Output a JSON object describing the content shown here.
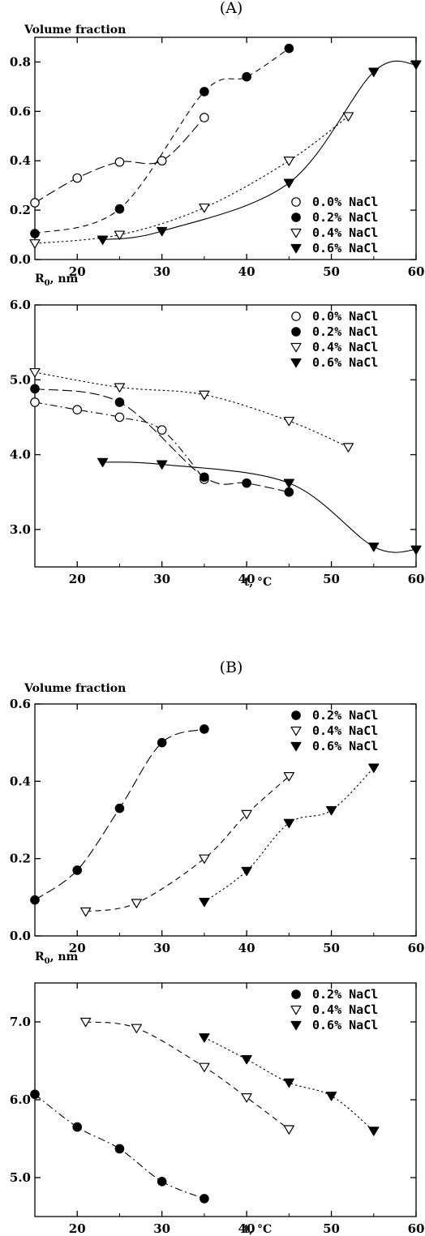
{
  "figure": {
    "panel_a_label": "(A)",
    "panel_b_label": "(B)"
  },
  "chart_data": [
    {
      "type": "scatter",
      "title": "",
      "ylabel": "Volume fraction",
      "xlabel": "",
      "xlim": [
        15,
        60
      ],
      "ylim": [
        0,
        0.9
      ],
      "xticks": [
        "20",
        "30",
        "40",
        "50",
        "60"
      ],
      "yticks": [
        "0.0",
        "0.2",
        "0.4",
        "0.6",
        "0.8"
      ],
      "legend_position": "lower-right",
      "series": [
        {
          "name": "0.0% NaCl",
          "marker": "open-circle",
          "line": "long-dash",
          "x": [
            15,
            20,
            25,
            30,
            35
          ],
          "y": [
            0.23,
            0.33,
            0.395,
            0.4,
            0.575
          ]
        },
        {
          "name": "0.2% NaCl",
          "marker": "filled-circle",
          "line": "dash",
          "x": [
            15,
            25,
            35,
            40,
            45
          ],
          "y": [
            0.105,
            0.205,
            0.68,
            0.74,
            0.855
          ]
        },
        {
          "name": "0.4% NaCl",
          "marker": "open-triangle-down",
          "line": "dot",
          "x": [
            15,
            25,
            35,
            45,
            52
          ],
          "y": [
            0.065,
            0.1,
            0.21,
            0.4,
            0.58
          ]
        },
        {
          "name": "0.6% NaCl",
          "marker": "filled-triangle-down",
          "line": "solid",
          "x": [
            23,
            30,
            45,
            55,
            60
          ],
          "y": [
            0.08,
            0.115,
            0.31,
            0.76,
            0.79
          ]
        }
      ]
    },
    {
      "type": "scatter",
      "title": "",
      "ylabel": "R",
      "ylabel_sub": "0",
      "ylabel_unit": ", nm",
      "xlabel": "t, °C",
      "xlim": [
        15,
        60
      ],
      "ylim": [
        2.5,
        6.0
      ],
      "xticks": [
        "20",
        "30",
        "40",
        "50",
        "60"
      ],
      "yticks": [
        "3.0",
        "4.0",
        "5.0",
        "6.0"
      ],
      "legend_position": "top-right",
      "series": [
        {
          "name": "0.0% NaCl",
          "marker": "open-circle",
          "line": "dash-dot",
          "x": [
            15,
            20,
            25,
            30,
            35
          ],
          "y": [
            4.7,
            4.6,
            4.5,
            4.33,
            3.67
          ]
        },
        {
          "name": "0.2% NaCl",
          "marker": "filled-circle",
          "line": "long-dash",
          "x": [
            15,
            25,
            35,
            40,
            45
          ],
          "y": [
            4.88,
            4.7,
            3.7,
            3.62,
            3.5
          ]
        },
        {
          "name": "0.4% NaCl",
          "marker": "open-triangle-down",
          "line": "dot",
          "x": [
            15,
            25,
            35,
            45,
            52
          ],
          "y": [
            5.1,
            4.9,
            4.8,
            4.45,
            4.1
          ]
        },
        {
          "name": "0.6% NaCl",
          "marker": "filled-triangle-down",
          "line": "solid",
          "x": [
            23,
            30,
            45,
            55,
            60
          ],
          "y": [
            3.9,
            3.87,
            3.62,
            2.77,
            2.73
          ]
        }
      ]
    },
    {
      "type": "scatter",
      "title": "",
      "ylabel": "Volume fraction",
      "xlabel": "",
      "xlim": [
        15,
        60
      ],
      "ylim": [
        0,
        0.6
      ],
      "xticks": [
        "20",
        "30",
        "40",
        "50",
        "60"
      ],
      "yticks": [
        "0.0",
        "0.2",
        "0.4",
        "0.6"
      ],
      "legend_position": "top-right",
      "series": [
        {
          "name": "0.2% NaCl",
          "marker": "filled-circle",
          "line": "long-dash",
          "x": [
            15,
            20,
            25,
            30,
            35
          ],
          "y": [
            0.093,
            0.17,
            0.33,
            0.5,
            0.535
          ]
        },
        {
          "name": "0.4% NaCl",
          "marker": "open-triangle-down",
          "line": "dash",
          "x": [
            21,
            27,
            35,
            40,
            45
          ],
          "y": [
            0.063,
            0.085,
            0.2,
            0.315,
            0.413
          ]
        },
        {
          "name": "0.6% NaCl",
          "marker": "filled-triangle-down",
          "line": "dot",
          "x": [
            35,
            40,
            45,
            50,
            55
          ],
          "y": [
            0.088,
            0.168,
            0.292,
            0.325,
            0.435
          ]
        }
      ]
    },
    {
      "type": "scatter",
      "title": "",
      "ylabel": "R",
      "ylabel_sub": "0",
      "ylabel_unit": ", nm",
      "xlabel": "t, °C",
      "xlim": [
        15,
        60
      ],
      "ylim": [
        4.5,
        7.5
      ],
      "xticks": [
        "20",
        "30",
        "40",
        "50",
        "60"
      ],
      "yticks": [
        "5.0",
        "6.0",
        "7.0"
      ],
      "legend_position": "top-right",
      "series": [
        {
          "name": "0.2% NaCl",
          "marker": "filled-circle",
          "line": "dash-dot",
          "x": [
            15,
            20,
            25,
            30,
            35
          ],
          "y": [
            6.07,
            5.65,
            5.37,
            4.95,
            4.73
          ]
        },
        {
          "name": "0.4% NaCl",
          "marker": "open-triangle-down",
          "line": "dash",
          "x": [
            21,
            27,
            35,
            40,
            45
          ],
          "y": [
            7.0,
            6.92,
            6.42,
            6.03,
            5.62
          ]
        },
        {
          "name": "0.6% NaCl",
          "marker": "filled-triangle-down",
          "line": "dot",
          "x": [
            35,
            40,
            45,
            50,
            55
          ],
          "y": [
            6.8,
            6.52,
            6.22,
            6.05,
            5.6
          ]
        }
      ]
    }
  ]
}
